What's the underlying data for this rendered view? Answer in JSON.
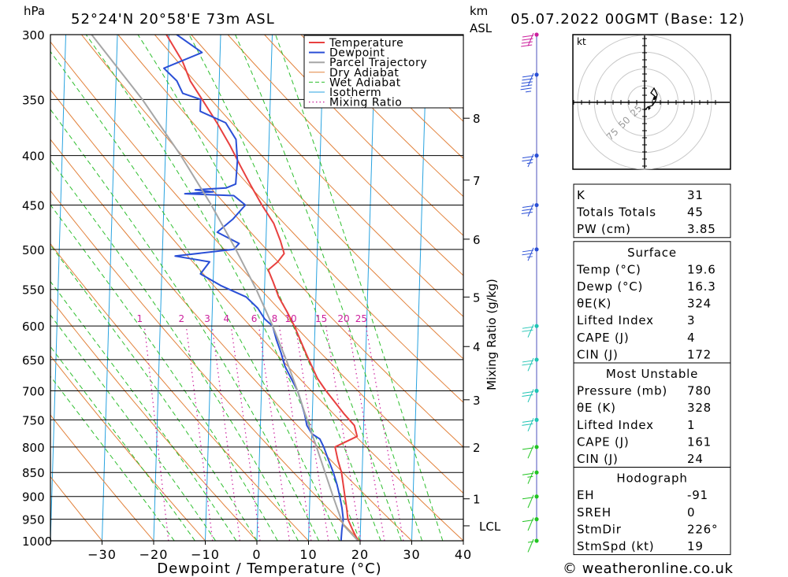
{
  "header": {
    "pressure_unit": "hPa",
    "location": "52°24'N  20°58'E  73m  ASL",
    "km_label": "km",
    "asl_label": "ASL",
    "datetime": "05.07.2022  00GMT  (Base: 12)"
  },
  "footer": {
    "credit": "© weatheronline.co.uk"
  },
  "colors": {
    "temperature": "#e8403f",
    "dewpoint": "#2a4fd6",
    "parcel": "#a6a6a6",
    "dry_adiabat": "#e2823c",
    "wet_adiabat": "#2fbf2f",
    "isotherm": "#29a3e0",
    "mixing_ratio": "#cc1f9d"
  },
  "chart_data": {
    "type": "line",
    "title": "52°24'N  20°58'E  73m  ASL",
    "xlabel": "Dewpoint / Temperature (°C)",
    "ylabel": "hPa",
    "xlim": [
      -40,
      40
    ],
    "ylim": [
      1000,
      300
    ],
    "y_scale": "log",
    "x_ticks": [
      "-30",
      "-20",
      "-10",
      "0",
      "10",
      "20",
      "30",
      "40"
    ],
    "pressure_levels": [
      "300",
      "350",
      "400",
      "450",
      "500",
      "550",
      "600",
      "650",
      "700",
      "750",
      "800",
      "850",
      "900",
      "950",
      "1000"
    ],
    "height_axis_label": "km ASL",
    "height_ticks": [
      {
        "label": "8",
        "p": 366
      },
      {
        "label": "7",
        "p": 424
      },
      {
        "label": "6",
        "p": 488
      },
      {
        "label": "5",
        "p": 560
      },
      {
        "label": "4",
        "p": 630
      },
      {
        "label": "3",
        "p": 715
      },
      {
        "label": "2",
        "p": 800
      },
      {
        "label": "1",
        "p": 905
      },
      {
        "label": "LCL",
        "p": 965
      }
    ],
    "mixing_ratio_label": "Mixing Ratio (g/kg)",
    "mixing_ratio_values": [
      "1",
      "2",
      "3",
      "4",
      "6",
      "8",
      "10",
      "15",
      "20",
      "25"
    ],
    "legend": [
      "Temperature",
      "Dewpoint",
      "Parcel Trajectory",
      "Dry Adiabat",
      "Wet Adiabat",
      "Isotherm",
      "Mixing Ratio"
    ],
    "legend_position": "top-right",
    "series": [
      {
        "name": "Temperature",
        "points": [
          [
            1000,
            19.6
          ],
          [
            975,
            18.5
          ],
          [
            950,
            17.5
          ],
          [
            925,
            17.2
          ],
          [
            900,
            16.8
          ],
          [
            875,
            16.4
          ],
          [
            850,
            16.0
          ],
          [
            825,
            15.2
          ],
          [
            800,
            14.6
          ],
          [
            780,
            18.8
          ],
          [
            760,
            18.2
          ],
          [
            740,
            16.2
          ],
          [
            720,
            14.4
          ],
          [
            700,
            12.5
          ],
          [
            680,
            10.8
          ],
          [
            660,
            9.6
          ],
          [
            640,
            8.4
          ],
          [
            620,
            7.2
          ],
          [
            600,
            6.0
          ],
          [
            580,
            4.5
          ],
          [
            560,
            2.8
          ],
          [
            540,
            1.6
          ],
          [
            525,
            0.6
          ],
          [
            515,
            2.4
          ],
          [
            505,
            3.6
          ],
          [
            490,
            2.8
          ],
          [
            470,
            1.4
          ],
          [
            450,
            -1.0
          ],
          [
            430,
            -3.2
          ],
          [
            410,
            -5.4
          ],
          [
            390,
            -7.6
          ],
          [
            370,
            -10.2
          ],
          [
            350,
            -13.2
          ],
          [
            335,
            -15.6
          ],
          [
            320,
            -17.2
          ],
          [
            300,
            -20.5
          ]
        ]
      },
      {
        "name": "Dewpoint",
        "points": [
          [
            1000,
            16.3
          ],
          [
            975,
            16.4
          ],
          [
            950,
            16.6
          ],
          [
            925,
            16.3
          ],
          [
            900,
            15.8
          ],
          [
            875,
            15.2
          ],
          [
            850,
            14.4
          ],
          [
            825,
            13.4
          ],
          [
            800,
            12.4
          ],
          [
            785,
            11.6
          ],
          [
            775,
            10.0
          ],
          [
            760,
            9.0
          ],
          [
            740,
            8.5
          ],
          [
            720,
            7.8
          ],
          [
            700,
            7.0
          ],
          [
            680,
            5.7
          ],
          [
            660,
            4.4
          ],
          [
            640,
            3.6
          ],
          [
            620,
            2.6
          ],
          [
            600,
            1.8
          ],
          [
            590,
            0.2
          ],
          [
            575,
            -1.2
          ],
          [
            560,
            -3.5
          ],
          [
            545,
            -8.5
          ],
          [
            530,
            -12.5
          ],
          [
            515,
            -10.8
          ],
          [
            508,
            -17.5
          ],
          [
            500,
            -6.2
          ],
          [
            493,
            -5.2
          ],
          [
            480,
            -9.5
          ],
          [
            465,
            -6.5
          ],
          [
            450,
            -4.2
          ],
          [
            440,
            -6.5
          ],
          [
            438,
            -16.0
          ],
          [
            436,
            -10.5
          ],
          [
            434,
            -14.0
          ],
          [
            432,
            -8.0
          ],
          [
            428,
            -6.2
          ],
          [
            405,
            -6.0
          ],
          [
            385,
            -6.4
          ],
          [
            370,
            -8.5
          ],
          [
            360,
            -13.5
          ],
          [
            350,
            -13.5
          ],
          [
            345,
            -17.0
          ],
          [
            335,
            -18.2
          ],
          [
            325,
            -20.8
          ],
          [
            313,
            -13.5
          ],
          [
            300,
            -18.5
          ]
        ]
      },
      {
        "name": "Parcel Trajectory",
        "points": [
          [
            1000,
            19.6
          ],
          [
            965,
            16.8
          ],
          [
            950,
            16.2
          ],
          [
            900,
            14.5
          ],
          [
            850,
            12.8
          ],
          [
            800,
            11.0
          ],
          [
            750,
            9.0
          ],
          [
            700,
            7.0
          ],
          [
            650,
            4.6
          ],
          [
            600,
            1.8
          ],
          [
            550,
            -1.6
          ],
          [
            500,
            -5.8
          ],
          [
            450,
            -10.8
          ],
          [
            400,
            -17.0
          ],
          [
            350,
            -24.8
          ],
          [
            300,
            -35.0
          ]
        ]
      }
    ]
  },
  "wind_profile": {
    "unit": "kt",
    "levels": [
      {
        "p": 300,
        "speed": 40
      },
      {
        "p": 330,
        "speed": 55
      },
      {
        "p": 400,
        "speed": 25
      },
      {
        "p": 450,
        "speed": 30
      },
      {
        "p": 500,
        "speed": 25
      },
      {
        "p": 600,
        "speed": 20
      },
      {
        "p": 650,
        "speed": 20
      },
      {
        "p": 700,
        "speed": 20
      },
      {
        "p": 750,
        "speed": 20
      },
      {
        "p": 800,
        "speed": 10
      },
      {
        "p": 850,
        "speed": 15
      },
      {
        "p": 900,
        "speed": 10
      },
      {
        "p": 950,
        "speed": 10
      },
      {
        "p": 1000,
        "speed": 5
      }
    ]
  },
  "hodograph": {
    "unit_label": "kt",
    "ring_labels": [
      "25",
      "50",
      "75"
    ]
  },
  "indices": {
    "basic": [
      {
        "name": "K",
        "value": "31"
      },
      {
        "name": "Totals Totals",
        "value": "45"
      },
      {
        "name": "PW (cm)",
        "value": "3.85"
      }
    ],
    "surface": {
      "title": "Surface",
      "rows": [
        {
          "name": "Temp (°C)",
          "value": "19.6"
        },
        {
          "name": "Dewp (°C)",
          "value": "16.3"
        },
        {
          "name": "θE(K)",
          "value": "324"
        },
        {
          "name": "Lifted Index",
          "value": "3"
        },
        {
          "name": "CAPE (J)",
          "value": "4"
        },
        {
          "name": "CIN (J)",
          "value": "172"
        }
      ]
    },
    "most_unstable": {
      "title": "Most Unstable",
      "rows": [
        {
          "name": "Pressure (mb)",
          "value": "780"
        },
        {
          "name": "θE (K)",
          "value": "328"
        },
        {
          "name": "Lifted Index",
          "value": "1"
        },
        {
          "name": "CAPE (J)",
          "value": "161"
        },
        {
          "name": "CIN (J)",
          "value": "24"
        }
      ]
    },
    "hodograph": {
      "title": "Hodograph",
      "rows": [
        {
          "name": "EH",
          "value": "-91"
        },
        {
          "name": "SREH",
          "value": "0"
        },
        {
          "name": "StmDir",
          "value": "226°"
        },
        {
          "name": "StmSpd (kt)",
          "value": "19"
        }
      ]
    }
  }
}
